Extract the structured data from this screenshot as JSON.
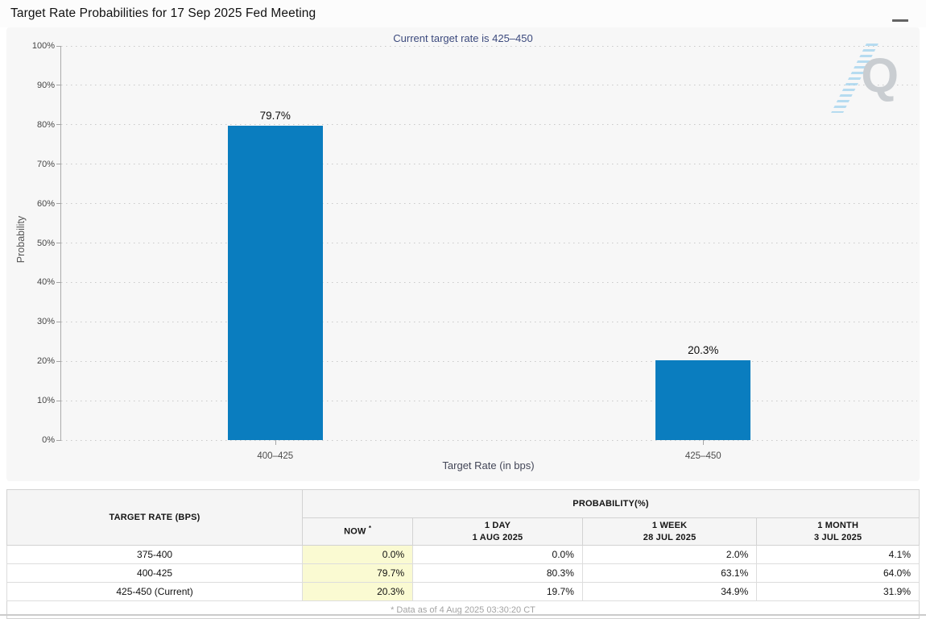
{
  "header": {
    "title": "Target Rate Probabilities for 17 Sep 2025 Fed Meeting"
  },
  "chart": {
    "subtitle": "Current target rate is 425–450",
    "watermark_letter": "Q"
  },
  "chart_data": {
    "type": "bar",
    "title": "Target Rate Probabilities for 17 Sep 2025 Fed Meeting",
    "subtitle": "Current target rate is 425–450",
    "categories": [
      "400–425",
      "425–450"
    ],
    "values": [
      79.7,
      20.3
    ],
    "bar_labels": [
      "79.7%",
      "20.3%"
    ],
    "xlabel": "Target Rate (in bps)",
    "ylabel": "Probability",
    "ylim": [
      0,
      100
    ],
    "yticks": [
      "0%",
      "10%",
      "20%",
      "30%",
      "40%",
      "50%",
      "60%",
      "70%",
      "80%",
      "90%",
      "100%"
    ],
    "grid": "horizontal-dotted",
    "legend": "none",
    "bar_color": "#0a7dbf"
  },
  "table": {
    "col_headers": {
      "target_rate": "TARGET RATE (BPS)",
      "probability": "PROBABILITY(%)",
      "now": "NOW",
      "now_asterisk": "*",
      "day_label": "1 DAY",
      "day_date": "1 AUG 2025",
      "week_label": "1 WEEK",
      "week_date": "28 JUL 2025",
      "month_label": "1 MONTH",
      "month_date": "3 JUL 2025"
    },
    "rows": [
      {
        "rate": "375-400",
        "now": "0.0%",
        "day": "0.0%",
        "week": "2.0%",
        "month": "4.1%"
      },
      {
        "rate": "400-425",
        "now": "79.7%",
        "day": "80.3%",
        "week": "63.1%",
        "month": "64.0%"
      },
      {
        "rate": "425-450 (Current)",
        "now": "20.3%",
        "day": "19.7%",
        "week": "34.9%",
        "month": "31.9%"
      }
    ],
    "footnote": "* Data as of 4 Aug 2025 03:30:20 CT"
  },
  "colors": {
    "bar": "#0a7dbf",
    "subtitle_text": "#3c4a7d",
    "now_highlight": "#fafad2",
    "panel_background": "#f7f7f7"
  }
}
